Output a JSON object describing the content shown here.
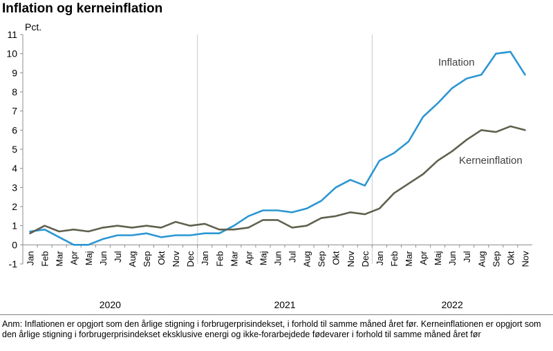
{
  "header": {
    "title": "Inflation og kerneinflation"
  },
  "chart_data": {
    "type": "line",
    "title": "Inflation og kerneinflation",
    "ylabel": "Pct.",
    "ylim": [
      -1,
      11
    ],
    "yticks": [
      -1,
      0,
      1,
      2,
      3,
      4,
      5,
      6,
      7,
      8,
      9,
      10,
      11
    ],
    "categories": [
      "Jan",
      "Feb",
      "Mar",
      "Apr",
      "Maj",
      "Jun",
      "Jul",
      "Aug",
      "Sep",
      "Okt",
      "Nov",
      "Dec",
      "Jan",
      "Feb",
      "Mar",
      "Apr",
      "Maj",
      "Jun",
      "Jul",
      "Aug",
      "Sep",
      "Okt",
      "Nov",
      "Dec",
      "Jan",
      "Feb",
      "Mar",
      "Apr",
      "Maj",
      "Jun",
      "Jul",
      "Aug",
      "Sep",
      "Okt",
      "Nov"
    ],
    "years": [
      {
        "label": "2020",
        "start": 0,
        "end": 11
      },
      {
        "label": "2021",
        "start": 12,
        "end": 23
      },
      {
        "label": "2022",
        "start": 24,
        "end": 34
      }
    ],
    "series": [
      {
        "name": "Inflation",
        "color": "#2b96d2",
        "values": [
          0.7,
          0.8,
          0.4,
          0.0,
          0.0,
          0.3,
          0.5,
          0.5,
          0.6,
          0.4,
          0.5,
          0.5,
          0.6,
          0.6,
          1.0,
          1.5,
          1.8,
          1.8,
          1.7,
          1.9,
          2.3,
          3.0,
          3.4,
          3.1,
          4.4,
          4.8,
          5.4,
          6.7,
          7.4,
          8.2,
          8.7,
          8.9,
          10.0,
          10.1,
          8.9
        ]
      },
      {
        "name": "Kerneinflation",
        "color": "#60604e",
        "values": [
          0.6,
          1.0,
          0.7,
          0.8,
          0.7,
          0.9,
          1.0,
          0.9,
          1.0,
          0.9,
          1.2,
          1.0,
          1.1,
          0.8,
          0.8,
          0.9,
          1.3,
          1.3,
          0.9,
          1.0,
          1.4,
          1.5,
          1.7,
          1.6,
          1.9,
          2.7,
          3.2,
          3.7,
          4.4,
          4.9,
          5.5,
          6.0,
          5.9,
          6.2,
          6.0
        ]
      }
    ]
  },
  "footer": {
    "note": "Anm: Inflationen er opgjort som den årlige stigning i forbrugerprisindekset, i forhold til samme måned året før. Kerneinflationen er opgjort som den årlige stigning i forbrugerprisindekset eksklusive energi og ikke-forarbejdede fødevarer i forhold til samme måned året før"
  }
}
